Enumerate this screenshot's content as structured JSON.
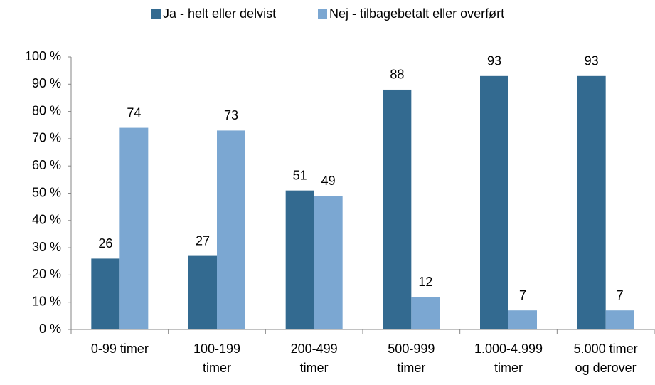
{
  "chart_data": {
    "type": "bar",
    "categories": [
      "0-99 timer",
      "100-199 timer",
      "200-499 timer",
      "500-999 timer",
      "1.000-4.999 timer",
      "5.000 timer og derover"
    ],
    "series": [
      {
        "name": "Ja - helt eller delvist",
        "color": "#336a90",
        "values": [
          26,
          27,
          51,
          88,
          93,
          93
        ]
      },
      {
        "name": "Nej - tilbagebetalt eller overført",
        "color": "#7ba7d2",
        "values": [
          74,
          73,
          49,
          12,
          7,
          7
        ]
      }
    ],
    "ylim": [
      0,
      100
    ],
    "yticks": [
      {
        "value": 0,
        "label": "0 %"
      },
      {
        "value": 10,
        "label": "10 %"
      },
      {
        "value": 20,
        "label": "20 %"
      },
      {
        "value": 30,
        "label": "30 %"
      },
      {
        "value": 40,
        "label": "40 %"
      },
      {
        "value": 50,
        "label": "50 %"
      },
      {
        "value": 60,
        "label": "60 %"
      },
      {
        "value": 70,
        "label": "70 %"
      },
      {
        "value": 80,
        "label": "80 %"
      },
      {
        "value": 90,
        "label": "90 %"
      },
      {
        "value": 100,
        "label": "100 %"
      }
    ],
    "grid": false,
    "legend": "top"
  }
}
